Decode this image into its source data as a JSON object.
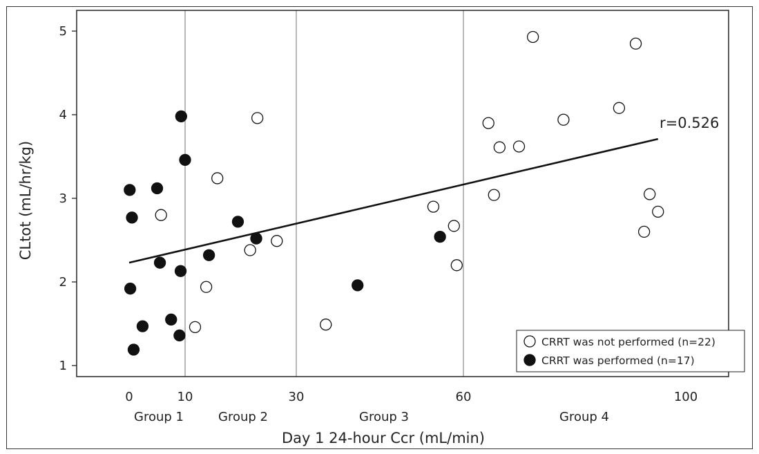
{
  "chart_data": {
    "type": "scatter",
    "xlabel": "Day 1 24-hour Ccr (mL/min)",
    "ylabel": "CLtot (mL/hr/kg)",
    "x_ticks": [
      {
        "label": "0",
        "value": 0
      },
      {
        "label": "10",
        "value": 10
      },
      {
        "label": "30",
        "value": 30
      },
      {
        "label": "60",
        "value": 60
      },
      {
        "label": "100",
        "value": 100
      }
    ],
    "y_ticks": [
      {
        "label": "1",
        "value": 1
      },
      {
        "label": "2",
        "value": 2
      },
      {
        "label": "3",
        "value": 3
      },
      {
        "label": "4",
        "value": 4
      },
      {
        "label": "5",
        "value": 5
      }
    ],
    "ylim": [
      0.85,
      5.1
    ],
    "vertical_lines": [
      10,
      30,
      60
    ],
    "groups": [
      {
        "label": "Group 1",
        "center": 5
      },
      {
        "label": "Group 2",
        "center": 20
      },
      {
        "label": "Group 3",
        "center": 45
      },
      {
        "label": "Group 4",
        "center": 80
      }
    ],
    "series": [
      {
        "name": "CRRT was not performed (n=22)",
        "marker": "open-circle",
        "points": [
          [
            5.7,
            2.8
          ],
          [
            11.8,
            1.46
          ],
          [
            13.8,
            1.94
          ],
          [
            15.8,
            3.24
          ],
          [
            21.7,
            2.38
          ],
          [
            23.0,
            3.96
          ],
          [
            26.5,
            2.49
          ],
          [
            35.3,
            1.49
          ],
          [
            54.6,
            2.9
          ],
          [
            58.3,
            2.67
          ],
          [
            58.8,
            2.2
          ],
          [
            64.5,
            3.9
          ],
          [
            65.5,
            3.04
          ],
          [
            66.5,
            3.61
          ],
          [
            70.0,
            3.62
          ],
          [
            72.5,
            4.93
          ],
          [
            78.0,
            3.94
          ],
          [
            88.0,
            4.08
          ],
          [
            91.0,
            4.85
          ],
          [
            92.5,
            2.6
          ],
          [
            93.5,
            3.05
          ],
          [
            95.0,
            2.84
          ]
        ]
      },
      {
        "name": "CRRT was performed (n=17)",
        "marker": "filled-circle",
        "points": [
          [
            0.1,
            3.1
          ],
          [
            0.5,
            2.77
          ],
          [
            0.2,
            1.92
          ],
          [
            0.8,
            1.19
          ],
          [
            2.4,
            1.47
          ],
          [
            5.0,
            3.12
          ],
          [
            5.5,
            2.23
          ],
          [
            7.5,
            1.55
          ],
          [
            9.0,
            1.36
          ],
          [
            9.2,
            2.13
          ],
          [
            9.3,
            3.98
          ],
          [
            10.0,
            3.46
          ],
          [
            14.3,
            2.32
          ],
          [
            19.5,
            2.72
          ],
          [
            22.8,
            2.52
          ],
          [
            41.0,
            1.96
          ],
          [
            55.8,
            2.54
          ]
        ]
      }
    ],
    "trendline": {
      "x": [
        0,
        95
      ],
      "y": [
        2.23,
        3.71
      ]
    },
    "annotation": "r=0.526",
    "legend_position": "bottom-right",
    "grid": false
  }
}
